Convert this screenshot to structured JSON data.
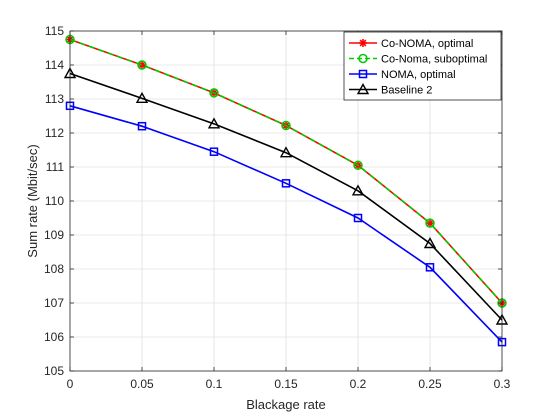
{
  "chart_data": {
    "type": "line",
    "xlabel": "Blackage rate",
    "ylabel": "Sum rate (Mbit/sec)",
    "xlim": [
      0,
      0.3
    ],
    "ylim": [
      105,
      115
    ],
    "xticks": [
      "0",
      "0.05",
      "0.1",
      "0.15",
      "0.2",
      "0.25",
      "0.3"
    ],
    "yticks": [
      "105",
      "106",
      "107",
      "108",
      "109",
      "110",
      "111",
      "112",
      "113",
      "114",
      "115"
    ],
    "grid": true,
    "legend_position": "top-right",
    "x": [
      0,
      0.05,
      0.1,
      0.15,
      0.2,
      0.25,
      0.3
    ],
    "series": [
      {
        "name": "Co-NOMA, optimal",
        "values": [
          114.75,
          114.0,
          113.18,
          112.22,
          111.05,
          109.35,
          107.0
        ],
        "color": "#ff0000",
        "marker": "asterisk",
        "dash": "solid"
      },
      {
        "name": "Co-Noma, suboptimal",
        "values": [
          114.75,
          114.0,
          113.18,
          112.22,
          111.05,
          109.35,
          107.0
        ],
        "color": "#00cc00",
        "marker": "circle",
        "dash": "dashed"
      },
      {
        "name": "NOMA, optimal",
        "values": [
          112.8,
          112.2,
          111.45,
          110.52,
          109.5,
          108.05,
          105.85
        ],
        "color": "#0000ff",
        "marker": "square",
        "dash": "solid"
      },
      {
        "name": "Baseline 2",
        "values": [
          113.75,
          113.02,
          112.27,
          111.42,
          110.3,
          108.75,
          106.5
        ],
        "color": "#000000",
        "marker": "triangle",
        "dash": "solid"
      }
    ]
  }
}
